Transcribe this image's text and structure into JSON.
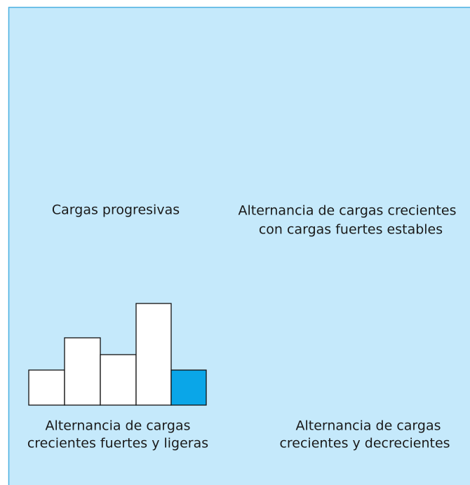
{
  "panels": [
    {
      "lines": [
        "Cargas progresivas"
      ]
    },
    {
      "lines": [
        "Alternancia de cargas crecientes",
        "con cargas fuertes estables"
      ]
    },
    {
      "lines": [
        "Alternancia de cargas",
        "crecientes fuertes y ligeras"
      ]
    },
    {
      "lines": [
        "Alternancia de cargas",
        "crecientes y decrecientes"
      ]
    }
  ]
}
